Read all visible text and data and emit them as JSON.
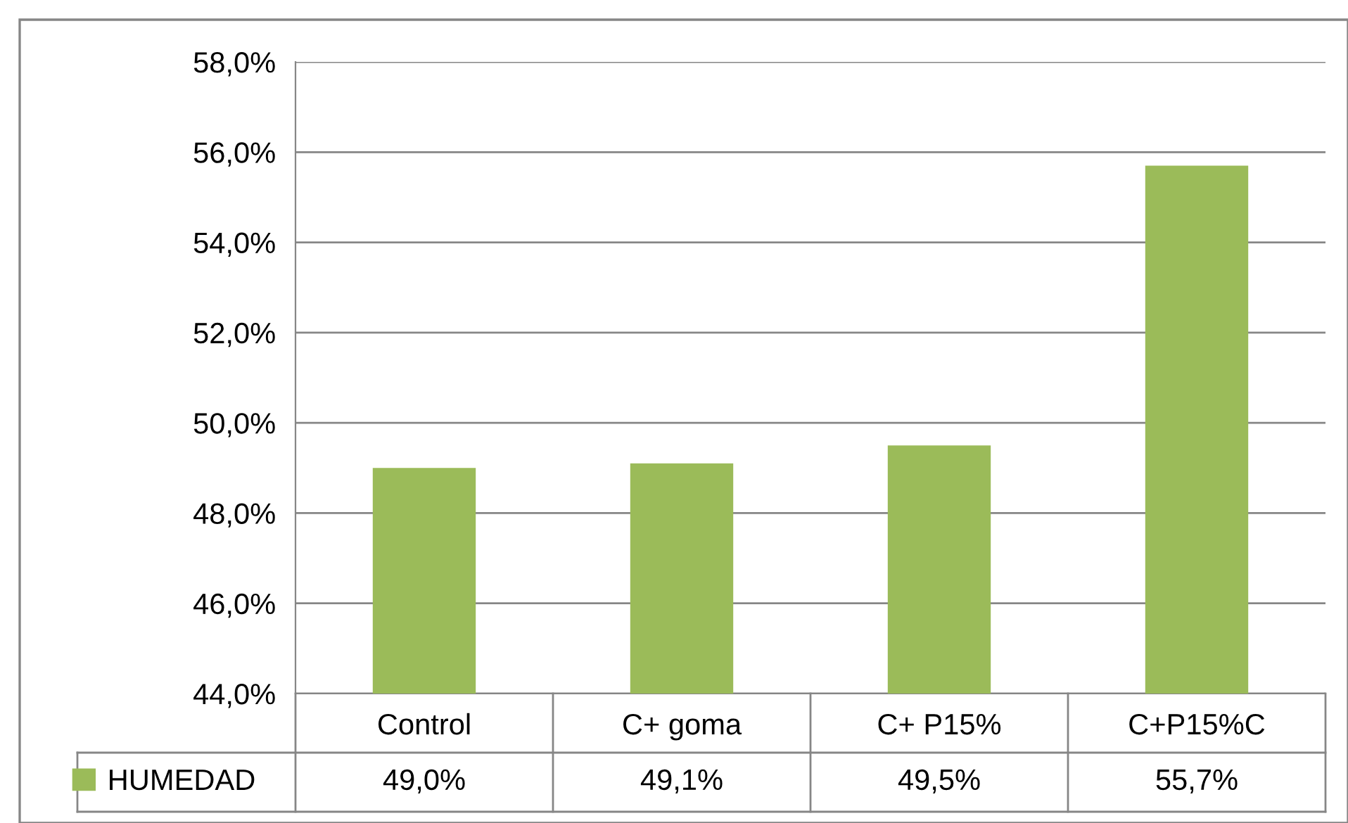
{
  "chart_data": {
    "type": "bar",
    "categories": [
      "Control",
      "C+ goma",
      "C+ P15%",
      "C+P15%C"
    ],
    "series": [
      {
        "name": "HUMEDAD",
        "color": "#9bbb59",
        "values": [
          49.0,
          49.1,
          49.5,
          55.7
        ],
        "value_labels": [
          "49,0%",
          "49,1%",
          "49,5%",
          "55,7%"
        ]
      }
    ],
    "ylim": [
      44,
      58
    ],
    "yticks": [
      {
        "value": 44,
        "label": "44,0%"
      },
      {
        "value": 46,
        "label": "46,0%"
      },
      {
        "value": 48,
        "label": "48,0%"
      },
      {
        "value": 50,
        "label": "50,0%"
      },
      {
        "value": 52,
        "label": "52,0%"
      },
      {
        "value": 54,
        "label": "54,0%"
      },
      {
        "value": 56,
        "label": "56,0%"
      },
      {
        "value": 58,
        "label": "58,0%"
      }
    ],
    "grid": "y",
    "legend": "bottom"
  }
}
